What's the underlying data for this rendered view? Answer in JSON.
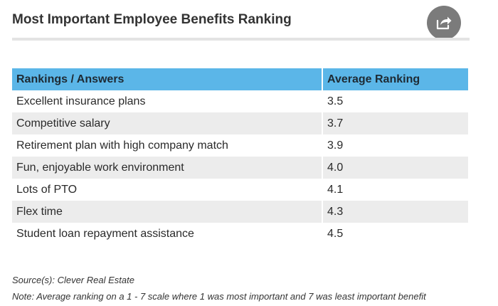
{
  "title": "Most Important Employee Benefits Ranking",
  "share_icon": "share-arrow-icon",
  "colors": {
    "header_bg": "#5bb6e8",
    "row_alt_bg": "#ececec",
    "share_button_bg": "#7b7b7b"
  },
  "chart_data": {
    "type": "table",
    "title": "Most Important Employee Benefits Ranking",
    "columns": [
      "Rankings / Answers",
      "Average Ranking"
    ],
    "rows": [
      {
        "answer": "Excellent insurance plans",
        "value": "3.5"
      },
      {
        "answer": "Competitive salary",
        "value": "3.7"
      },
      {
        "answer": "Retirement plan with high company match",
        "value": "3.9"
      },
      {
        "answer": "Fun, enjoyable work environment",
        "value": "4.0"
      },
      {
        "answer": "Lots of PTO",
        "value": "4.1"
      },
      {
        "answer": "Flex time",
        "value": "4.3"
      },
      {
        "answer": "Student loan repayment assistance",
        "value": "4.5"
      }
    ]
  },
  "source": "Source(s): Clever Real Estate",
  "note": "Note: Average ranking on a 1 - 7 scale where 1 was most important and 7 was least important benefit"
}
